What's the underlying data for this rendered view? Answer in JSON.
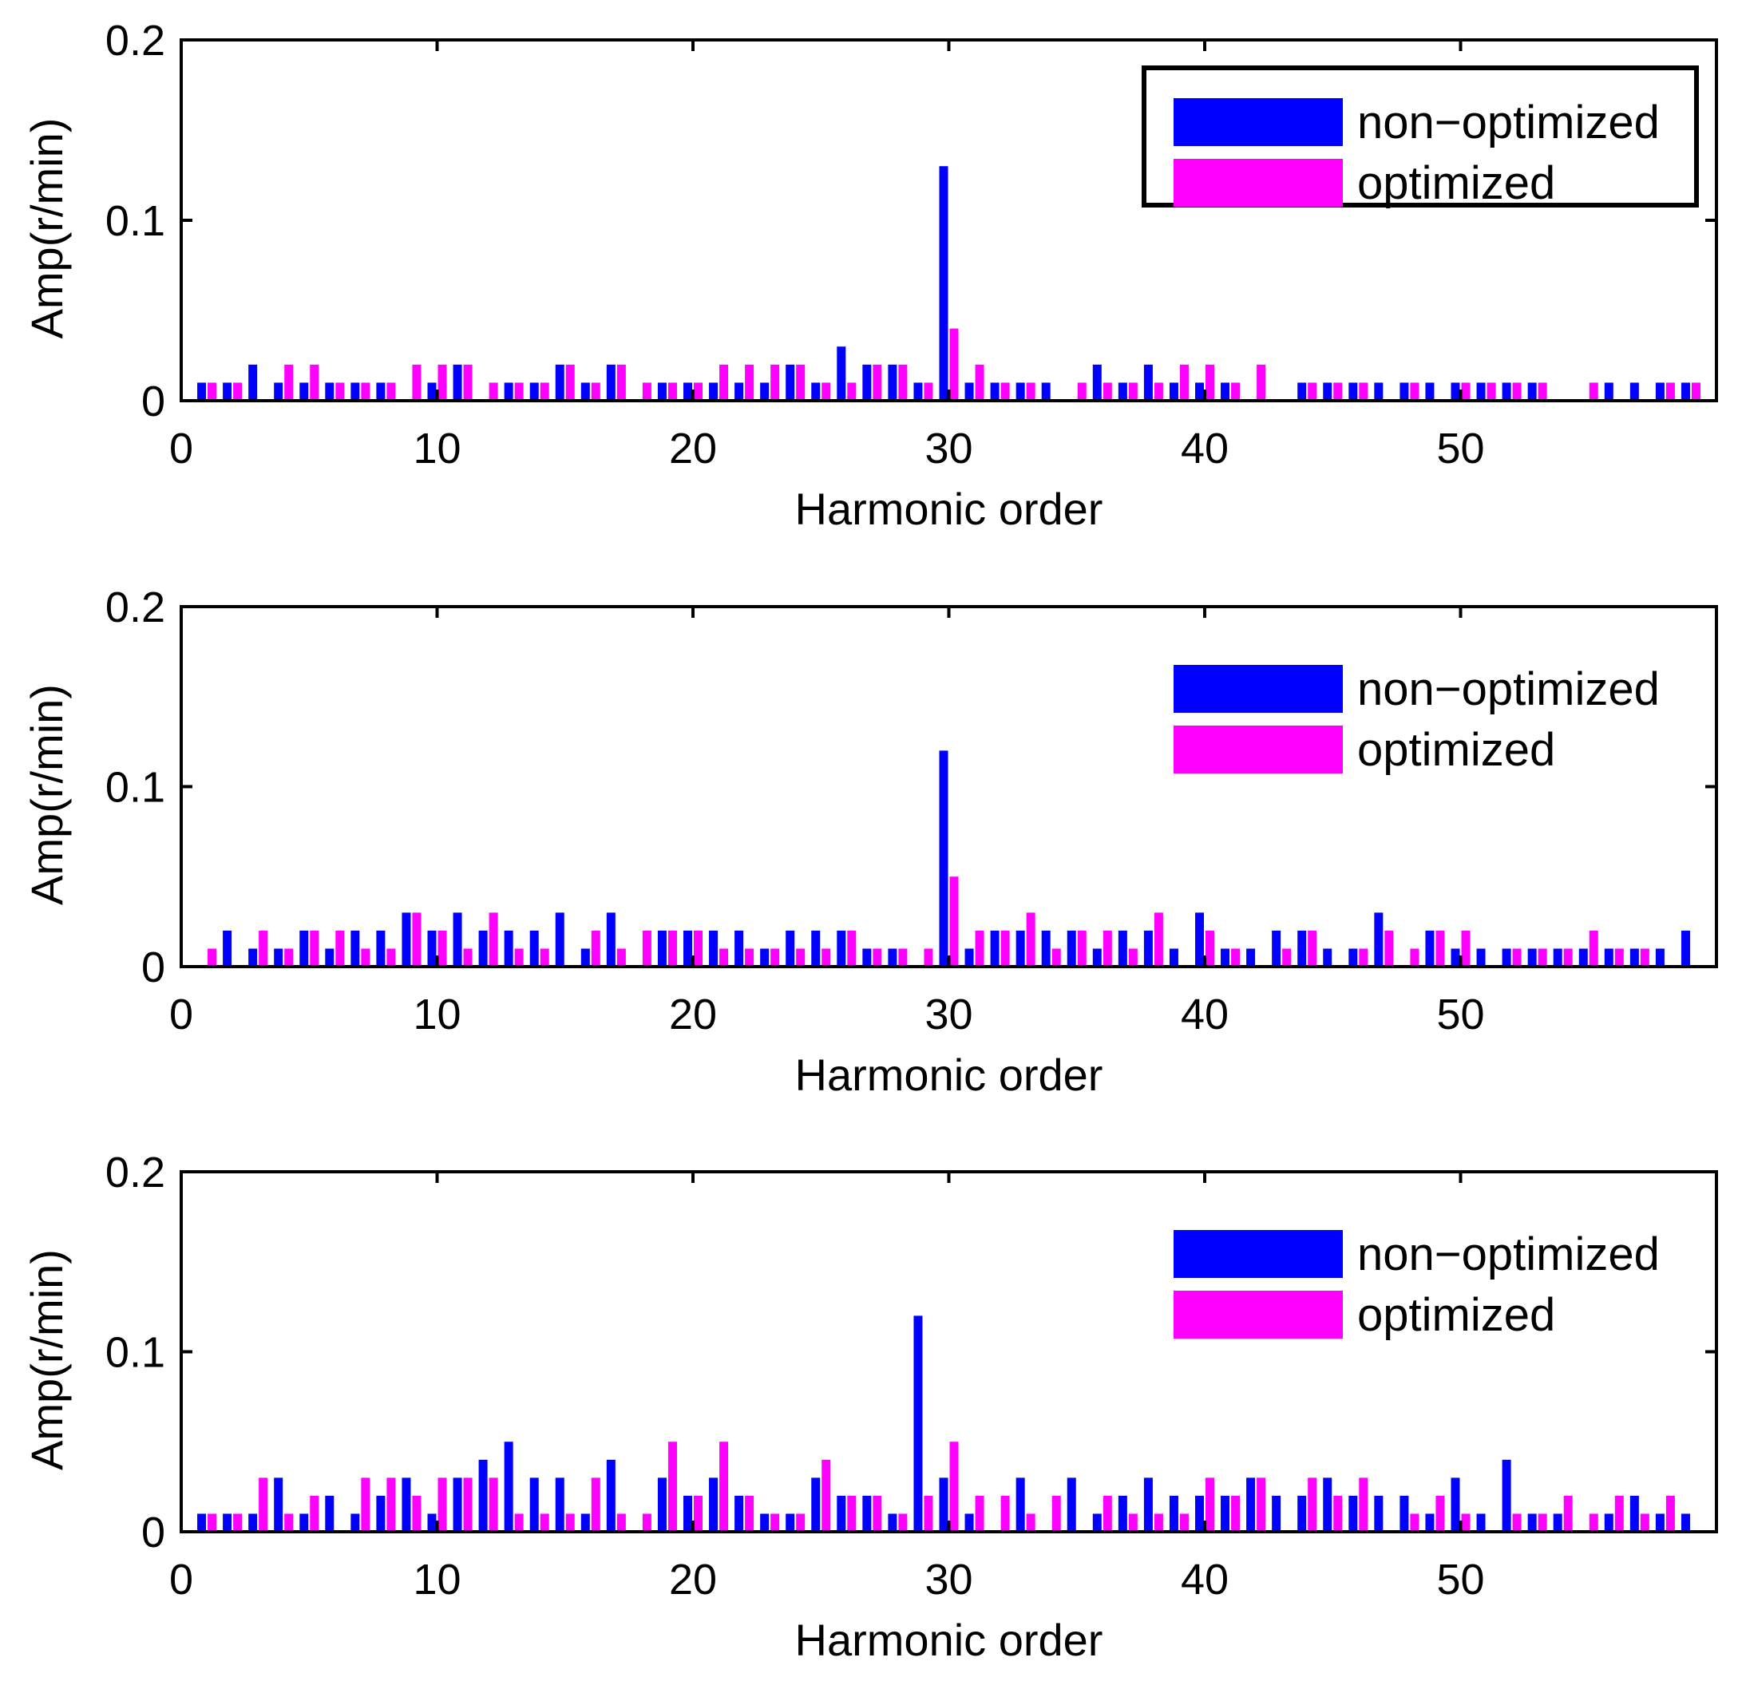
{
  "colors": {
    "non_optimized": "#0000ff",
    "optimized": "#ff00ff",
    "axis": "#000000"
  },
  "chart_data": [
    {
      "type": "bar",
      "title": "",
      "xlabel": "Harmonic order",
      "ylabel": "Amp(r/min)",
      "xlim": [
        0,
        60
      ],
      "ylim": [
        0,
        0.2
      ],
      "xticks": [
        "0",
        "10",
        "20",
        "30",
        "40",
        "50"
      ],
      "yticks": [
        "0",
        "0.1",
        "0.2"
      ],
      "legend": {
        "placement": "top-right",
        "boxed": true,
        "entries": [
          "non−optimized",
          "optimized"
        ]
      },
      "x": [
        1,
        2,
        3,
        4,
        5,
        6,
        7,
        8,
        9,
        10,
        11,
        12,
        13,
        14,
        15,
        16,
        17,
        18,
        19,
        20,
        21,
        22,
        23,
        24,
        25,
        26,
        27,
        28,
        29,
        30,
        31,
        32,
        33,
        34,
        35,
        36,
        37,
        38,
        39,
        40,
        41,
        42,
        43,
        44,
        45,
        46,
        47,
        48,
        49,
        50,
        51,
        52,
        53,
        54,
        55,
        56,
        57,
        58,
        59
      ],
      "series": [
        {
          "name": "non−optimized",
          "color": "#0000ff",
          "values": [
            0.01,
            0.01,
            0.02,
            0.01,
            0.01,
            0.01,
            0.01,
            0.01,
            0,
            0.01,
            0.02,
            0,
            0.01,
            0.01,
            0.02,
            0.01,
            0.02,
            0,
            0.01,
            0.01,
            0.01,
            0.01,
            0.01,
            0.02,
            0.01,
            0.03,
            0.02,
            0.02,
            0.01,
            0.13,
            0.01,
            0.01,
            0.01,
            0.01,
            0,
            0.02,
            0.01,
            0.02,
            0.01,
            0.01,
            0.01,
            0,
            0,
            0.01,
            0.01,
            0.01,
            0.01,
            0.01,
            0.01,
            0.01,
            0.01,
            0.01,
            0.01,
            0,
            0,
            0.01,
            0.01,
            0.01,
            0.01
          ]
        },
        {
          "name": "optimized",
          "color": "#ff00ff",
          "values": [
            0.01,
            0.01,
            0,
            0.02,
            0.02,
            0.01,
            0.01,
            0.01,
            0.02,
            0.02,
            0.02,
            0.01,
            0.01,
            0.01,
            0.02,
            0.01,
            0.02,
            0.01,
            0.01,
            0.01,
            0.02,
            0.02,
            0.02,
            0.02,
            0.01,
            0.01,
            0.02,
            0.02,
            0.01,
            0.04,
            0.02,
            0.01,
            0.01,
            0,
            0.01,
            0.01,
            0.01,
            0.01,
            0.02,
            0.02,
            0.01,
            0.02,
            0,
            0.01,
            0.01,
            0.01,
            0,
            0.01,
            0,
            0.01,
            0.01,
            0.01,
            0.01,
            0,
            0.01,
            0,
            0,
            0.01,
            0.01
          ]
        }
      ]
    },
    {
      "type": "bar",
      "title": "",
      "xlabel": "Harmonic order",
      "ylabel": "Amp(r/min)",
      "xlim": [
        0,
        60
      ],
      "ylim": [
        0,
        0.2
      ],
      "xticks": [
        "0",
        "10",
        "20",
        "30",
        "40",
        "50"
      ],
      "yticks": [
        "0",
        "0.1",
        "0.2"
      ],
      "legend": {
        "placement": "top-right",
        "boxed": false,
        "entries": [
          "non−optimized",
          "optimized"
        ]
      },
      "x": [
        1,
        2,
        3,
        4,
        5,
        6,
        7,
        8,
        9,
        10,
        11,
        12,
        13,
        14,
        15,
        16,
        17,
        18,
        19,
        20,
        21,
        22,
        23,
        24,
        25,
        26,
        27,
        28,
        29,
        30,
        31,
        32,
        33,
        34,
        35,
        36,
        37,
        38,
        39,
        40,
        41,
        42,
        43,
        44,
        45,
        46,
        47,
        48,
        49,
        50,
        51,
        52,
        53,
        54,
        55,
        56,
        57,
        58,
        59
      ],
      "series": [
        {
          "name": "non−optimized",
          "color": "#0000ff",
          "values": [
            0,
            0.02,
            0.01,
            0.01,
            0.02,
            0.01,
            0.02,
            0.02,
            0.03,
            0.02,
            0.03,
            0.02,
            0.02,
            0.02,
            0.03,
            0.01,
            0.03,
            0,
            0.02,
            0.02,
            0.02,
            0.02,
            0.01,
            0.02,
            0.02,
            0.02,
            0.01,
            0.01,
            0,
            0.12,
            0.01,
            0.02,
            0.02,
            0.02,
            0.02,
            0.01,
            0.02,
            0.02,
            0.01,
            0.03,
            0.01,
            0.01,
            0.02,
            0.02,
            0.01,
            0.01,
            0.03,
            0,
            0.02,
            0.01,
            0.01,
            0.01,
            0.01,
            0.01,
            0.01,
            0.01,
            0.01,
            0.01,
            0.02
          ]
        },
        {
          "name": "optimized",
          "color": "#ff00ff",
          "values": [
            0.01,
            0,
            0.02,
            0.01,
            0.02,
            0.02,
            0.01,
            0.01,
            0.03,
            0.02,
            0.01,
            0.03,
            0.01,
            0.01,
            0,
            0.02,
            0.01,
            0.02,
            0.02,
            0.02,
            0.01,
            0.01,
            0.01,
            0.01,
            0.01,
            0.02,
            0.01,
            0.01,
            0.01,
            0.05,
            0.02,
            0.02,
            0.03,
            0.01,
            0.02,
            0.02,
            0.01,
            0.03,
            0,
            0.02,
            0.01,
            0,
            0.01,
            0.02,
            0,
            0.01,
            0.02,
            0.01,
            0.02,
            0.02,
            0,
            0.01,
            0.01,
            0.01,
            0.02,
            0.01,
            0.01,
            0,
            0
          ]
        }
      ]
    },
    {
      "type": "bar",
      "title": "",
      "xlabel": "Harmonic order",
      "ylabel": "Amp(r/min)",
      "xlim": [
        0,
        60
      ],
      "ylim": [
        0,
        0.2
      ],
      "xticks": [
        "0",
        "10",
        "20",
        "30",
        "40",
        "50"
      ],
      "yticks": [
        "0",
        "0.1",
        "0.2"
      ],
      "legend": {
        "placement": "top-right",
        "boxed": false,
        "entries": [
          "non−optimized",
          "optimized"
        ]
      },
      "x": [
        1,
        2,
        3,
        4,
        5,
        6,
        7,
        8,
        9,
        10,
        11,
        12,
        13,
        14,
        15,
        16,
        17,
        18,
        19,
        20,
        21,
        22,
        23,
        24,
        25,
        26,
        27,
        28,
        29,
        30,
        31,
        32,
        33,
        34,
        35,
        36,
        37,
        38,
        39,
        40,
        41,
        42,
        43,
        44,
        45,
        46,
        47,
        48,
        49,
        50,
        51,
        52,
        53,
        54,
        55,
        56,
        57,
        58,
        59
      ],
      "series": [
        {
          "name": "non−optimized",
          "color": "#0000ff",
          "values": [
            0.01,
            0.01,
            0.01,
            0.03,
            0.01,
            0.02,
            0.01,
            0.02,
            0.03,
            0.01,
            0.03,
            0.04,
            0.05,
            0.03,
            0.03,
            0.01,
            0.04,
            0,
            0.03,
            0.02,
            0.03,
            0.02,
            0.01,
            0.01,
            0.03,
            0.02,
            0.02,
            0.01,
            0.12,
            0.03,
            0.01,
            0,
            0.03,
            0,
            0.03,
            0.01,
            0.02,
            0.03,
            0.02,
            0.02,
            0.02,
            0.03,
            0.02,
            0.02,
            0.03,
            0.02,
            0.02,
            0.02,
            0.01,
            0.03,
            0.01,
            0.04,
            0.01,
            0.01,
            0,
            0.01,
            0.02,
            0.01,
            0.01
          ]
        },
        {
          "name": "optimized",
          "color": "#ff00ff",
          "values": [
            0.01,
            0.01,
            0.03,
            0.01,
            0.02,
            0,
            0.03,
            0.03,
            0.02,
            0.03,
            0.03,
            0.03,
            0.01,
            0.01,
            0.01,
            0.03,
            0.01,
            0.01,
            0.05,
            0.02,
            0.05,
            0.02,
            0.01,
            0.01,
            0.04,
            0.02,
            0.02,
            0.01,
            0.02,
            0.05,
            0.02,
            0.02,
            0.01,
            0.02,
            0,
            0.02,
            0.01,
            0.01,
            0.01,
            0.03,
            0.02,
            0.03,
            0,
            0.03,
            0.02,
            0.03,
            0,
            0.01,
            0.02,
            0.01,
            0,
            0.01,
            0.01,
            0.02,
            0.01,
            0.02,
            0.01,
            0.02,
            0
          ]
        }
      ]
    }
  ]
}
